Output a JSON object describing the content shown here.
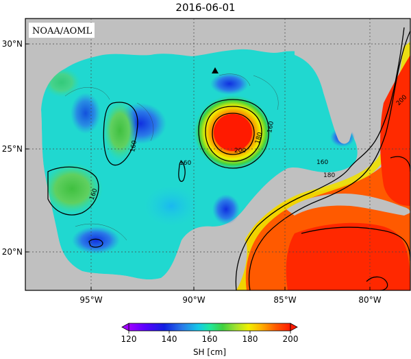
{
  "title": "2016-06-01",
  "credit": "NOAA/AOML",
  "lat_labels": [
    "30°N",
    "25°N",
    "20°N"
  ],
  "lon_labels": [
    "95°W",
    "90°W",
    "85°W",
    "80°W"
  ],
  "colorbar": {
    "label": "SH [cm]",
    "ticks": [
      "120",
      "140",
      "160",
      "180",
      "200"
    ],
    "colors": [
      "#a000ff",
      "#5a00ff",
      "#1020e0",
      "#2a7ae8",
      "#15c8e8",
      "#20e8a0",
      "#40d040",
      "#9ee030",
      "#f0f000",
      "#ffb000",
      "#ff5a00",
      "#ff1a00"
    ]
  },
  "contour_labels": [
    "160",
    "160",
    "160",
    "200",
    "180",
    "160",
    "160",
    "180",
    "200"
  ],
  "colors": {
    "land": "#c0c0c0",
    "frame": "#000000"
  }
}
